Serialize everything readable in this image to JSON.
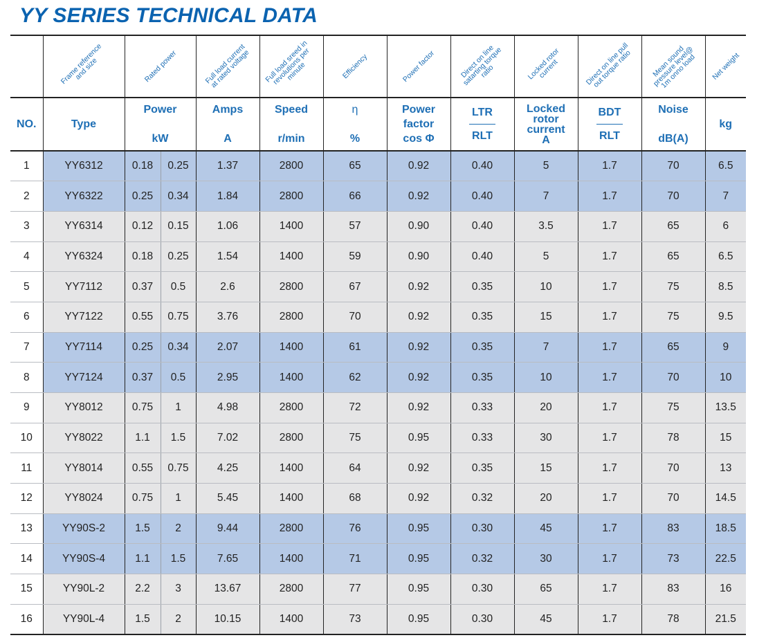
{
  "title": "YY SERIES TECHNICAL DATA",
  "rotated_headers": [
    "",
    "Frame reference and size",
    "Rated power",
    "Full load current at rated voltage",
    "Full load sreed in revolutions per minute",
    "Efficiency",
    "Power factor",
    "Direct on line satarting torque ratio",
    "Locked rotor current",
    "Direct on line pull out torque ratio",
    "Mean sound pressure level@ 1m onno load",
    "Net weight"
  ],
  "labels": {
    "no": "NO.",
    "type": "Type",
    "power_top": "Power",
    "power_bottom": "kW",
    "amps_top": "Amps",
    "amps_bottom": "A",
    "speed_top": "Speed",
    "speed_bottom": "r/min",
    "eff_top": "η",
    "eff_bottom": "%",
    "pf_1": "Power",
    "pf_2": "factor",
    "pf_3": "cos Φ",
    "ltr_top": "LTR",
    "ltr_bottom": "RLT",
    "lrc_1": "Locked",
    "lrc_2": "rotor",
    "lrc_3": "current",
    "lrc_4": "A",
    "bdt_top": "BDT",
    "bdt_bottom": "RLT",
    "noise_top": "Noise",
    "noise_bottom": "dB(A)",
    "weight": "kg"
  },
  "colors": {
    "title": "#0b63b0",
    "header_text": "#1e6fb5",
    "row_blue": "#b5c9e6",
    "row_grey": "#e5e5e6"
  },
  "rows": [
    {
      "no": "1",
      "type": "YY6312",
      "kw1": "0.18",
      "kw2": "0.25",
      "amps": "1.37",
      "speed": "2800",
      "eff": "65",
      "pf": "0.92",
      "ltr": "0.40",
      "lrc": "5",
      "bdt": "1.7",
      "noise": "70",
      "kg": "6.5",
      "shade": "blue"
    },
    {
      "no": "2",
      "type": "YY6322",
      "kw1": "0.25",
      "kw2": "0.34",
      "amps": "1.84",
      "speed": "2800",
      "eff": "66",
      "pf": "0.92",
      "ltr": "0.40",
      "lrc": "7",
      "bdt": "1.7",
      "noise": "70",
      "kg": "7",
      "shade": "blue"
    },
    {
      "no": "3",
      "type": "YY6314",
      "kw1": "0.12",
      "kw2": "0.15",
      "amps": "1.06",
      "speed": "1400",
      "eff": "57",
      "pf": "0.90",
      "ltr": "0.40",
      "lrc": "3.5",
      "bdt": "1.7",
      "noise": "65",
      "kg": "6",
      "shade": "grey"
    },
    {
      "no": "4",
      "type": "YY6324",
      "kw1": "0.18",
      "kw2": "0.25",
      "amps": "1.54",
      "speed": "1400",
      "eff": "59",
      "pf": "0.90",
      "ltr": "0.40",
      "lrc": "5",
      "bdt": "1.7",
      "noise": "65",
      "kg": "6.5",
      "shade": "grey"
    },
    {
      "no": "5",
      "type": "YY7112",
      "kw1": "0.37",
      "kw2": "0.5",
      "amps": "2.6",
      "speed": "2800",
      "eff": "67",
      "pf": "0.92",
      "ltr": "0.35",
      "lrc": "10",
      "bdt": "1.7",
      "noise": "75",
      "kg": "8.5",
      "shade": "grey"
    },
    {
      "no": "6",
      "type": "YY7122",
      "kw1": "0.55",
      "kw2": "0.75",
      "amps": "3.76",
      "speed": "2800",
      "eff": "70",
      "pf": "0.92",
      "ltr": "0.35",
      "lrc": "15",
      "bdt": "1.7",
      "noise": "75",
      "kg": "9.5",
      "shade": "grey"
    },
    {
      "no": "7",
      "type": "YY7114",
      "kw1": "0.25",
      "kw2": "0.34",
      "amps": "2.07",
      "speed": "1400",
      "eff": "61",
      "pf": "0.92",
      "ltr": "0.35",
      "lrc": "7",
      "bdt": "1.7",
      "noise": "65",
      "kg": "9",
      "shade": "blue"
    },
    {
      "no": "8",
      "type": "YY7124",
      "kw1": "0.37",
      "kw2": "0.5",
      "amps": "2.95",
      "speed": "1400",
      "eff": "62",
      "pf": "0.92",
      "ltr": "0.35",
      "lrc": "10",
      "bdt": "1.7",
      "noise": "70",
      "kg": "10",
      "shade": "blue"
    },
    {
      "no": "9",
      "type": "YY8012",
      "kw1": "0.75",
      "kw2": "1",
      "amps": "4.98",
      "speed": "2800",
      "eff": "72",
      "pf": "0.92",
      "ltr": "0.33",
      "lrc": "20",
      "bdt": "1.7",
      "noise": "75",
      "kg": "13.5",
      "shade": "grey"
    },
    {
      "no": "10",
      "type": "YY8022",
      "kw1": "1.1",
      "kw2": "1.5",
      "amps": "7.02",
      "speed": "2800",
      "eff": "75",
      "pf": "0.95",
      "ltr": "0.33",
      "lrc": "30",
      "bdt": "1.7",
      "noise": "78",
      "kg": "15",
      "shade": "grey"
    },
    {
      "no": "11",
      "type": "YY8014",
      "kw1": "0.55",
      "kw2": "0.75",
      "amps": "4.25",
      "speed": "1400",
      "eff": "64",
      "pf": "0.92",
      "ltr": "0.35",
      "lrc": "15",
      "bdt": "1.7",
      "noise": "70",
      "kg": "13",
      "shade": "grey"
    },
    {
      "no": "12",
      "type": "YY8024",
      "kw1": "0.75",
      "kw2": "1",
      "amps": "5.45",
      "speed": "1400",
      "eff": "68",
      "pf": "0.92",
      "ltr": "0.32",
      "lrc": "20",
      "bdt": "1.7",
      "noise": "70",
      "kg": "14.5",
      "shade": "grey"
    },
    {
      "no": "13",
      "type": "YY90S-2",
      "kw1": "1.5",
      "kw2": "2",
      "amps": "9.44",
      "speed": "2800",
      "eff": "76",
      "pf": "0.95",
      "ltr": "0.30",
      "lrc": "45",
      "bdt": "1.7",
      "noise": "83",
      "kg": "18.5",
      "shade": "blue"
    },
    {
      "no": "14",
      "type": "YY90S-4",
      "kw1": "1.1",
      "kw2": "1.5",
      "amps": "7.65",
      "speed": "1400",
      "eff": "71",
      "pf": "0.95",
      "ltr": "0.32",
      "lrc": "30",
      "bdt": "1.7",
      "noise": "73",
      "kg": "22.5",
      "shade": "blue"
    },
    {
      "no": "15",
      "type": "YY90L-2",
      "kw1": "2.2",
      "kw2": "3",
      "amps": "13.67",
      "speed": "2800",
      "eff": "77",
      "pf": "0.95",
      "ltr": "0.30",
      "lrc": "65",
      "bdt": "1.7",
      "noise": "83",
      "kg": "16",
      "shade": "grey"
    },
    {
      "no": "16",
      "type": "YY90L-4",
      "kw1": "1.5",
      "kw2": "2",
      "amps": "10.15",
      "speed": "1400",
      "eff": "73",
      "pf": "0.95",
      "ltr": "0.30",
      "lrc": "45",
      "bdt": "1.7",
      "noise": "78",
      "kg": "21.5",
      "shade": "grey"
    }
  ]
}
